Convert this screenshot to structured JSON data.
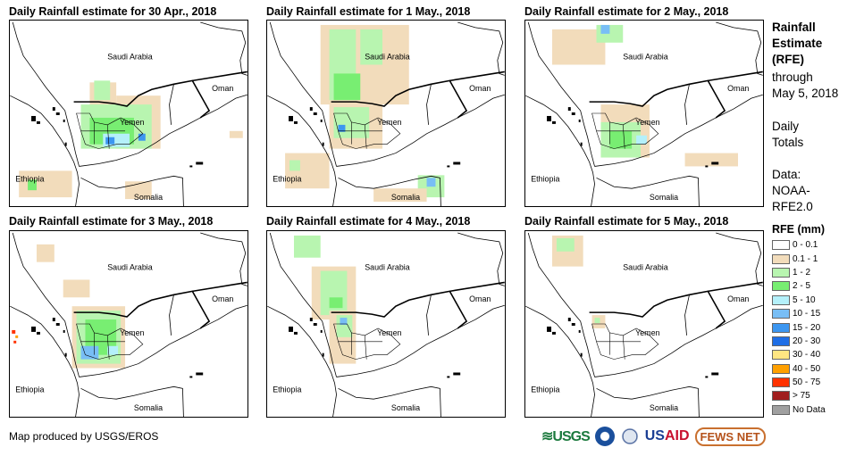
{
  "panels": [
    {
      "title": "Daily Rainfall estimate for 30 Apr., 2018"
    },
    {
      "title": "Daily Rainfall estimate for 1 May., 2018"
    },
    {
      "title": "Daily Rainfall estimate for 2 May., 2018"
    },
    {
      "title": "Daily Rainfall estimate for 3 May., 2018"
    },
    {
      "title": "Daily Rainfall estimate for 4 May., 2018"
    },
    {
      "title": "Daily Rainfall estimate for 5 May., 2018"
    }
  ],
  "map_labels": {
    "saudi": "Saudi Arabia",
    "oman": "Oman",
    "yemen": "Yemen",
    "ethiopia": "Ethiopia",
    "somalia": "Somalia"
  },
  "side": {
    "title_lines": [
      "Rainfall",
      "Estimate",
      "(RFE)"
    ],
    "through": [
      "through",
      "May 5, 2018"
    ],
    "daily": [
      "Daily",
      "Totals"
    ],
    "data": [
      "Data:",
      "NOAA-",
      "RFE2.0"
    ]
  },
  "legend": {
    "title": "RFE (mm)",
    "items": [
      {
        "label": "0 - 0.1",
        "color": "#ffffff"
      },
      {
        "label": "0.1 - 1",
        "color": "#f2dcbb"
      },
      {
        "label": "1 - 2",
        "color": "#b8f5b0"
      },
      {
        "label": "2 - 5",
        "color": "#78ee72"
      },
      {
        "label": "5 - 10",
        "color": "#b4f0fa"
      },
      {
        "label": "10 - 15",
        "color": "#78bef5"
      },
      {
        "label": "15 - 20",
        "color": "#3c96f0"
      },
      {
        "label": "20 - 30",
        "color": "#1e6ee6"
      },
      {
        "label": "30 - 40",
        "color": "#ffe682"
      },
      {
        "label": "40 - 50",
        "color": "#ffa000"
      },
      {
        "label": "50 - 75",
        "color": "#ff3200"
      },
      {
        "label": "> 75",
        "color": "#a01e1e"
      },
      {
        "label": "No Data",
        "color": "#a0a0a0"
      }
    ]
  },
  "credit": "Map produced by USGS/EROS",
  "logos": {
    "usgs": "USGS",
    "usaid_a": "US",
    "usaid_b": "AID",
    "fews": "FEWS NET"
  }
}
